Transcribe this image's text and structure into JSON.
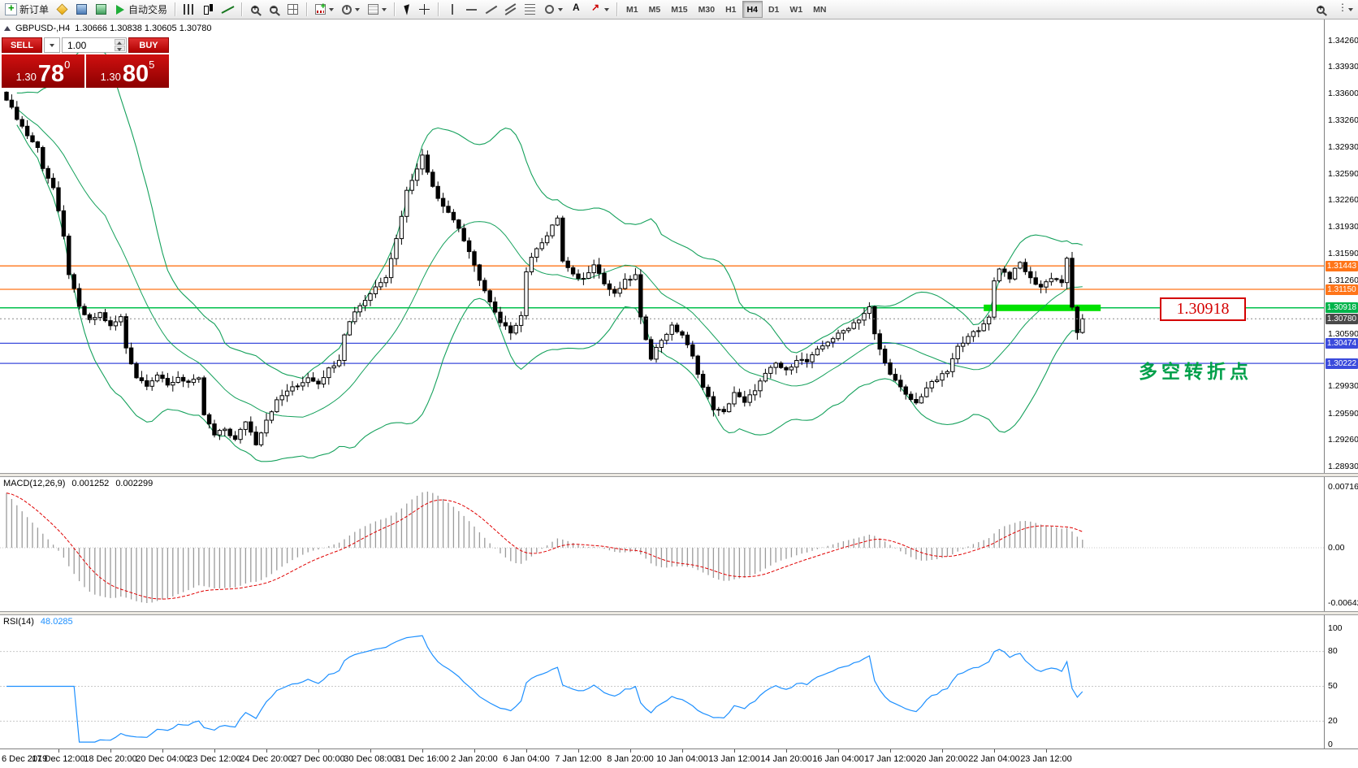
{
  "toolbar": {
    "active_timeframe": "H4",
    "items": [
      {
        "t": "btn",
        "name": "new-order-button",
        "icon": "new-order-icon",
        "label": "新订单"
      },
      {
        "t": "btn",
        "name": "market-watch-button",
        "icon": "market-watch-icon"
      },
      {
        "t": "btn",
        "name": "data-window-button",
        "icon": "data-window-icon"
      },
      {
        "t": "btn",
        "name": "history-center-button",
        "icon": "history-center-icon"
      },
      {
        "t": "btn",
        "name": "autotrading-button",
        "icon": "autotrading-icon",
        "label": "自动交易"
      },
      {
        "t": "sep"
      },
      {
        "t": "btn",
        "name": "bar-chart-button",
        "icon": "bar-chart-icon"
      },
      {
        "t": "btn",
        "name": "candlestick-chart-button",
        "icon": "candlestick-chart-icon"
      },
      {
        "t": "btn",
        "name": "line-chart-button",
        "icon": "line-chart-icon"
      },
      {
        "t": "sep"
      },
      {
        "t": "btn",
        "name": "zoom-in-button",
        "icon": "zoom-in-icon"
      },
      {
        "t": "btn",
        "name": "zoom-out-button",
        "icon": "zoom-out-icon"
      },
      {
        "t": "btn",
        "name": "tile-windows-button",
        "icon": "tile-windows-icon"
      },
      {
        "t": "sep"
      },
      {
        "t": "btn",
        "name": "indicators-button",
        "icon": "indicators-icon",
        "dd": true
      },
      {
        "t": "btn",
        "name": "periods-button",
        "icon": "periods-icon",
        "dd": true
      },
      {
        "t": "btn",
        "name": "templates-button",
        "icon": "templates-icon",
        "dd": true
      },
      {
        "t": "sep"
      },
      {
        "t": "btn",
        "name": "cursor-button",
        "icon": "cursor-icon"
      },
      {
        "t": "btn",
        "name": "crosshair-button",
        "icon": "crosshair-icon"
      },
      {
        "t": "sep"
      },
      {
        "t": "btn",
        "name": "vertical-line-button",
        "icon": "vline-icon"
      },
      {
        "t": "btn",
        "name": "horizontal-line-button",
        "icon": "hline-icon"
      },
      {
        "t": "btn",
        "name": "trendline-button",
        "icon": "trendline-icon"
      },
      {
        "t": "btn",
        "name": "channel-button",
        "icon": "channel-icon"
      },
      {
        "t": "btn",
        "name": "fibonacci-button",
        "icon": "fibonacci-icon"
      },
      {
        "t": "btn",
        "name": "shapes-button",
        "icon": "shapes-icon",
        "dd": true
      },
      {
        "t": "btn",
        "name": "text-button",
        "icon": "text-icon"
      },
      {
        "t": "btn",
        "name": "arrows-button",
        "icon": "arrows-icon",
        "dd": true
      },
      {
        "t": "sep"
      },
      {
        "t": "tf",
        "name": "timeframe-m1-button",
        "label": "M1"
      },
      {
        "t": "tf",
        "name": "timeframe-m5-button",
        "label": "M5"
      },
      {
        "t": "tf",
        "name": "timeframe-m15-button",
        "label": "M15"
      },
      {
        "t": "tf",
        "name": "timeframe-m30-button",
        "label": "M30"
      },
      {
        "t": "tf",
        "name": "timeframe-h1-button",
        "label": "H1"
      },
      {
        "t": "tf",
        "name": "timeframe-h4-button",
        "label": "H4"
      },
      {
        "t": "tf",
        "name": "timeframe-d1-button",
        "label": "D1"
      },
      {
        "t": "tf",
        "name": "timeframe-w1-button",
        "label": "W1"
      },
      {
        "t": "tf",
        "name": "timeframe-mn-button",
        "label": "MN"
      },
      {
        "t": "spacer"
      },
      {
        "t": "btn",
        "name": "search-button",
        "icon": "search-icon"
      },
      {
        "t": "btn",
        "name": "more-button",
        "icon": "more-icon",
        "dd": true
      }
    ]
  },
  "chart": {
    "symbol_period": "GBPUSD-,H4",
    "ohlc_text": "1.30666 1.30838 1.30605 1.30780"
  },
  "one_click": {
    "sell_label": "SELL",
    "buy_label": "BUY",
    "volume": "1.00",
    "sell_big": "1.30",
    "sell_pips": "78",
    "sell_sup": "0",
    "buy_big": "1.30",
    "buy_pips": "80",
    "buy_sup": "5"
  },
  "annotations": {
    "level_label": "1.30918",
    "note": "多空转折点",
    "note_color": "#00a04a"
  },
  "chart_data": {
    "type": "candlestick",
    "symbol": "GBPUSD-",
    "timeframe": "H4",
    "ohlc_display": {
      "open": "1.30666",
      "high": "1.30838",
      "low": "1.30605",
      "close": "1.30780"
    },
    "bar_count": 208,
    "close_waypoints": [
      [
        0,
        1.3352
      ],
      [
        2,
        1.333
      ],
      [
        4,
        1.3308
      ],
      [
        6,
        1.3292
      ],
      [
        7,
        1.3268
      ],
      [
        9,
        1.3242
      ],
      [
        11,
        1.318
      ],
      [
        12,
        1.3135
      ],
      [
        14,
        1.3092
      ],
      [
        16,
        1.3075
      ],
      [
        18,
        1.3085
      ],
      [
        20,
        1.3068
      ],
      [
        22,
        1.308
      ],
      [
        23,
        1.3042
      ],
      [
        25,
        1.3005
      ],
      [
        27,
        1.2996
      ],
      [
        29,
        1.3008
      ],
      [
        31,
        1.2994
      ],
      [
        33,
        1.3005
      ],
      [
        35,
        1.2998
      ],
      [
        37,
        1.3002
      ],
      [
        38,
        1.2958
      ],
      [
        40,
        1.2932
      ],
      [
        42,
        1.294
      ],
      [
        44,
        1.2926
      ],
      [
        46,
        1.295
      ],
      [
        48,
        1.2922
      ],
      [
        50,
        1.2952
      ],
      [
        52,
        1.2975
      ],
      [
        54,
        1.2988
      ],
      [
        56,
        1.2994
      ],
      [
        58,
        1.3005
      ],
      [
        60,
        1.2998
      ],
      [
        62,
        1.3015
      ],
      [
        64,
        1.3028
      ],
      [
        65,
        1.306
      ],
      [
        67,
        1.3088
      ],
      [
        69,
        1.3102
      ],
      [
        71,
        1.3118
      ],
      [
        73,
        1.3132
      ],
      [
        75,
        1.3178
      ],
      [
        77,
        1.3238
      ],
      [
        79,
        1.3268
      ],
      [
        80,
        1.3282
      ],
      [
        81,
        1.3262
      ],
      [
        83,
        1.323
      ],
      [
        85,
        1.3212
      ],
      [
        87,
        1.3192
      ],
      [
        89,
        1.316
      ],
      [
        91,
        1.3128
      ],
      [
        93,
        1.3098
      ],
      [
        95,
        1.3072
      ],
      [
        97,
        1.3062
      ],
      [
        99,
        1.3082
      ],
      [
        100,
        1.3138
      ],
      [
        102,
        1.3168
      ],
      [
        104,
        1.3182
      ],
      [
        106,
        1.3205
      ],
      [
        107,
        1.315
      ],
      [
        109,
        1.3132
      ],
      [
        111,
        1.3128
      ],
      [
        113,
        1.3148
      ],
      [
        115,
        1.3122
      ],
      [
        117,
        1.3108
      ],
      [
        119,
        1.3125
      ],
      [
        121,
        1.3132
      ],
      [
        122,
        1.3078
      ],
      [
        124,
        1.303
      ],
      [
        126,
        1.3052
      ],
      [
        128,
        1.3068
      ],
      [
        130,
        1.3058
      ],
      [
        132,
        1.303
      ],
      [
        134,
        1.2992
      ],
      [
        136,
        1.2966
      ],
      [
        138,
        1.296
      ],
      [
        140,
        1.2986
      ],
      [
        142,
        1.2972
      ],
      [
        144,
        1.299
      ],
      [
        146,
        1.3008
      ],
      [
        148,
        1.3022
      ],
      [
        150,
        1.3012
      ],
      [
        152,
        1.3028
      ],
      [
        154,
        1.3024
      ],
      [
        156,
        1.3038
      ],
      [
        158,
        1.305
      ],
      [
        160,
        1.3058
      ],
      [
        162,
        1.3068
      ],
      [
        164,
        1.3078
      ],
      [
        166,
        1.3092
      ],
      [
        167,
        1.3058
      ],
      [
        169,
        1.3022
      ],
      [
        171,
        1.3
      ],
      [
        173,
        1.2982
      ],
      [
        175,
        1.2972
      ],
      [
        177,
        1.2992
      ],
      [
        179,
        1.3002
      ],
      [
        181,
        1.3012
      ],
      [
        183,
        1.3042
      ],
      [
        185,
        1.3058
      ],
      [
        187,
        1.3062
      ],
      [
        189,
        1.3082
      ],
      [
        190,
        1.3125
      ],
      [
        191,
        1.3142
      ],
      [
        193,
        1.313
      ],
      [
        195,
        1.3148
      ],
      [
        197,
        1.3128
      ],
      [
        199,
        1.3118
      ],
      [
        201,
        1.313
      ],
      [
        203,
        1.3124
      ],
      [
        204,
        1.3152
      ],
      [
        205,
        1.3092
      ],
      [
        206,
        1.3062
      ],
      [
        207,
        1.3078
      ]
    ],
    "overlays": {
      "bollinger_period": 20,
      "bollinger_deviation": 2,
      "band_color": "#15a15c"
    },
    "hlines": [
      {
        "price": 1.31443,
        "label": "1.31443",
        "color": "#ff7519",
        "tag": "#ff7519",
        "width": 1.3,
        "style": "solid"
      },
      {
        "price": 1.3115,
        "label": "1.31150",
        "color": "#ff7519",
        "tag": "#ff7519",
        "width": 1.3,
        "style": "solid"
      },
      {
        "price": 1.30918,
        "label": "1.30918",
        "color": "#00c04b",
        "tag": "#00b44a",
        "width": 1.5,
        "style": "solid"
      },
      {
        "price": 1.3078,
        "label": "1.30780",
        "color": "#8a8a8a",
        "tag": "#4a4a4a",
        "width": 1,
        "style": "dotted",
        "role": "current"
      },
      {
        "price": 1.30474,
        "label": "1.30474",
        "color": "#3b4bdc",
        "tag": "#3b4bdc",
        "width": 1.3,
        "style": "solid"
      },
      {
        "price": 1.30222,
        "label": "1.30222",
        "color": "#3b4bdc",
        "tag": "#3b4bdc",
        "width": 1.3,
        "style": "solid"
      }
    ],
    "highlight_rect": {
      "price": 1.30918,
      "from_bar": 188,
      "to_bar": 210.5,
      "color": "#00e100"
    },
    "price_axis_labels": [
      "1.34260",
      "1.33930",
      "1.33600",
      "1.33260",
      "1.32930",
      "1.32590",
      "1.32260",
      "1.31930",
      "1.31590",
      "1.31260",
      "1.30590",
      "1.29930",
      "1.29590",
      "1.29260",
      "1.28930"
    ],
    "macd": {
      "name": "MACD(12,26,9)",
      "v1": "0.001252",
      "v2": "0.002299",
      "params": [
        12,
        26,
        9
      ],
      "axis_labels": [
        "0.007165",
        "0.00",
        "-0.006428"
      ],
      "histogram_color": "#9b9b9b",
      "signal_color": "#e00000"
    },
    "rsi": {
      "name": "RSI(14)",
      "value": "48.0285",
      "period": 14,
      "axis_labels": [
        "100",
        "80",
        "50",
        "20",
        "0"
      ],
      "levels": [
        80,
        50,
        20
      ],
      "line_color": "#1e90ff"
    },
    "time_labels": [
      "6 Dec 2019",
      "17 Dec 12:00",
      "18 Dec 20:00",
      "20 Dec 04:00",
      "23 Dec 12:00",
      "24 Dec 20:00",
      "27 Dec 00:00",
      "30 Dec 08:00",
      "31 Dec 16:00",
      "2 Jan 20:00",
      "6 Jan 04:00",
      "7 Jan 12:00",
      "8 Jan 20:00",
      "10 Jan 04:00",
      "13 Jan 12:00",
      "14 Jan 20:00",
      "16 Jan 04:00",
      "17 Jan 12:00",
      "20 Jan 20:00",
      "22 Jan 04:00",
      "23 Jan 12:00"
    ]
  }
}
